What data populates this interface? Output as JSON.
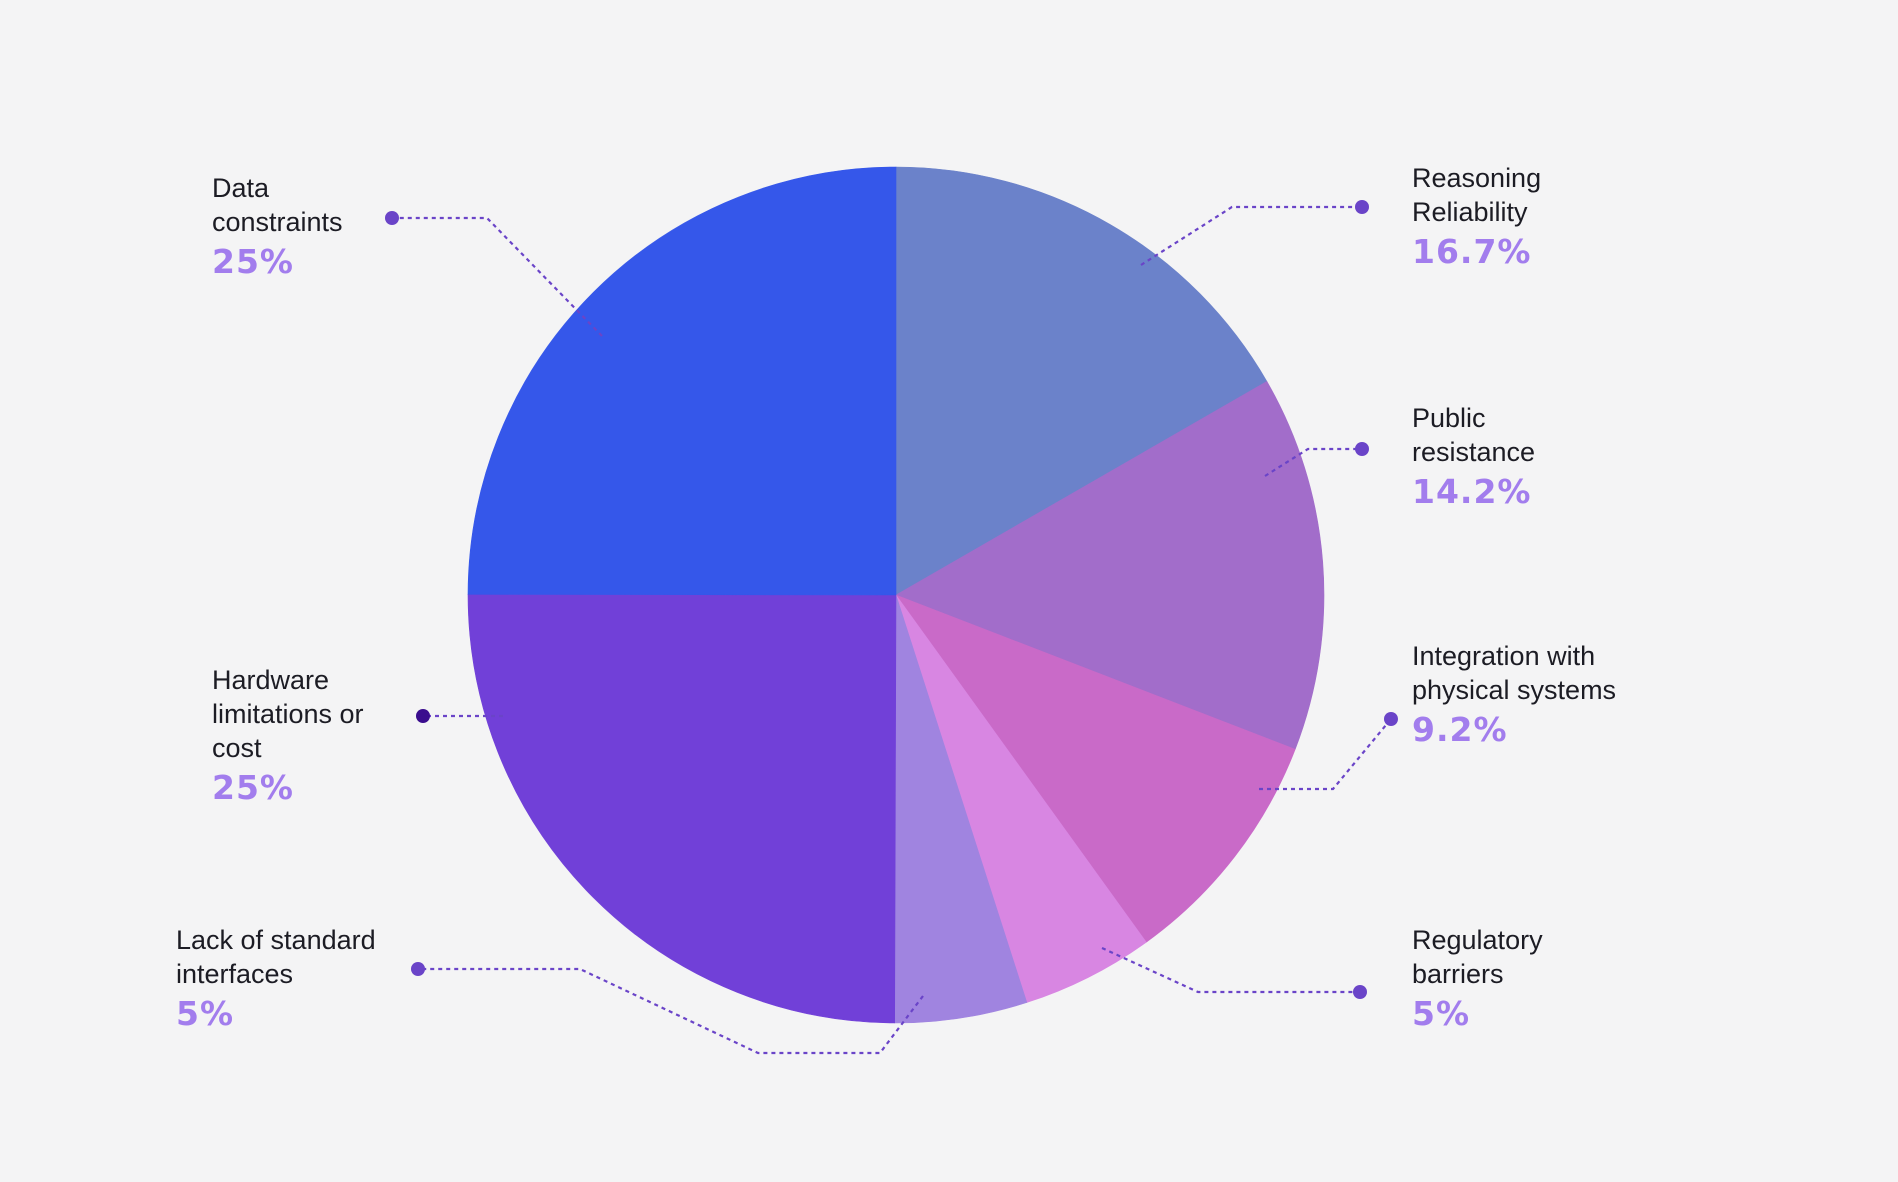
{
  "chart_data": {
    "type": "pie",
    "title": "",
    "slices": [
      {
        "label": "Reasoning\nReliability",
        "value": 16.7,
        "display": "16.7%",
        "color": "#6b82ca"
      },
      {
        "label": "Public\nresistance",
        "value": 14.2,
        "display": "14.2%",
        "color": "#a26dca"
      },
      {
        "label": "Integration with\nphysical systems",
        "value": 9.2,
        "display": "9.2%",
        "color": "#c96ac8"
      },
      {
        "label": "Regulatory\nbarriers",
        "value": 5,
        "display": "5%",
        "color": "#d886e2"
      },
      {
        "label": "Lack of standard\ninterfaces",
        "value": 5,
        "display": "5%",
        "color": "#a084e0"
      },
      {
        "label": "Hardware\nlimitations or\ncost",
        "value": 25,
        "display": "25%",
        "color": "#7140d8"
      },
      {
        "label": "Data\nconstraints",
        "value": 25,
        "display": "25%",
        "color": "#3557ea"
      }
    ],
    "colors": {
      "percent_text": "#a27ded",
      "label_text": "#1c1c24",
      "leader_line": "#6a44c8",
      "leader_dot": "#6a44c8",
      "leader_dot_dark": "#3a0d8e",
      "background": "#f4f4f5"
    }
  }
}
